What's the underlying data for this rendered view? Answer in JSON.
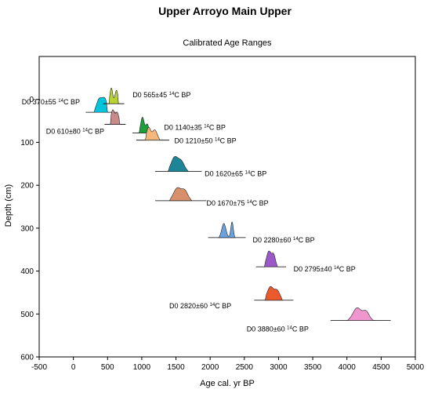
{
  "chart_data": {
    "type": "area",
    "title": "Upper Arroyo Main Upper",
    "subtitle": "Calibrated Age Ranges",
    "xlabel": "Age cal. yr BP",
    "ylabel": "Depth (cm)",
    "xlim": [
      -500,
      5000
    ],
    "ylim": [
      600,
      -100
    ],
    "xticks": [
      -500,
      0,
      500,
      1000,
      1500,
      2000,
      2500,
      3000,
      3500,
      4000,
      4500,
      5000
    ],
    "yticks": [
      0,
      100,
      200,
      300,
      400,
      500,
      600
    ],
    "grid": false,
    "samples": [
      {
        "label_prefix": "D0 370±55",
        "label_suffix": "C BP",
        "depth": 30,
        "range": [
          300,
          500
        ],
        "color": "#00c5dd",
        "peaks": [
          [
            380,
            0.85,
            40
          ],
          [
            460,
            0.8,
            35
          ]
        ]
      },
      {
        "label_prefix": "D0 565±45",
        "label_suffix": "C BP",
        "depth": 10,
        "range": [
          520,
          660
        ],
        "color": "#b8d430",
        "peaks": [
          [
            555,
            1.0,
            20
          ],
          [
            630,
            0.85,
            22
          ]
        ]
      },
      {
        "label_prefix": "D0 610±80",
        "label_suffix": "C BP",
        "depth": 58,
        "range": [
          540,
          680
        ],
        "color": "#c98a8a",
        "peaks": [
          [
            575,
            0.9,
            25
          ],
          [
            640,
            0.75,
            25
          ]
        ]
      },
      {
        "label_prefix": "D0 1140±35",
        "label_suffix": "C BP",
        "depth": 78,
        "range": [
          960,
          1120
        ],
        "color": "#1f9e3c",
        "peaks": [
          [
            1010,
            1.0,
            25
          ],
          [
            1080,
            0.55,
            22
          ]
        ]
      },
      {
        "label_prefix": "D0 1210±50",
        "label_suffix": "C BP",
        "depth": 95,
        "range": [
          1050,
          1270
        ],
        "color": "#f5b87a",
        "peaks": [
          [
            1100,
            0.8,
            30
          ],
          [
            1190,
            0.65,
            35
          ]
        ]
      },
      {
        "label_prefix": "D0 1620±65",
        "label_suffix": "C BP",
        "depth": 168,
        "range": [
          1380,
          1690
        ],
        "color": "#1e8497",
        "peaks": [
          [
            1480,
            0.9,
            50
          ],
          [
            1580,
            0.6,
            45
          ]
        ]
      },
      {
        "label_prefix": "D0 1670±75",
        "label_suffix": "C BP",
        "depth": 236,
        "range": [
          1400,
          1740
        ],
        "color": "#d8906c",
        "peaks": [
          [
            1520,
            0.8,
            55
          ],
          [
            1630,
            0.6,
            45
          ]
        ]
      },
      {
        "label_prefix": "D0 2280±60",
        "label_suffix": "C BP",
        "depth": 322,
        "range": [
          2120,
          2370
        ],
        "color": "#6aa2e0",
        "peaks": [
          [
            2200,
            0.9,
            30
          ],
          [
            2320,
            1.0,
            18
          ]
        ]
      },
      {
        "label_prefix": "D0 2795±40",
        "label_suffix": "C BP",
        "depth": 390,
        "range": [
          2790,
          2990
        ],
        "color": "#9b59c7",
        "peaks": [
          [
            2860,
            1.0,
            35
          ],
          [
            2930,
            0.7,
            25
          ]
        ]
      },
      {
        "label_prefix": "D0 2820±60",
        "label_suffix": "C BP",
        "depth": 468,
        "range": [
          2800,
          3060
        ],
        "color": "#ea5a2d",
        "peaks": [
          [
            2880,
            0.85,
            45
          ],
          [
            2980,
            0.6,
            40
          ]
        ]
      },
      {
        "label_prefix": "D0 3880±60",
        "label_suffix": "C BP",
        "depth": 515,
        "range": [
          4000,
          4400
        ],
        "color": "#ef96cf",
        "peaks": [
          [
            4150,
            0.8,
            60
          ],
          [
            4280,
            0.55,
            45
          ]
        ]
      }
    ]
  }
}
